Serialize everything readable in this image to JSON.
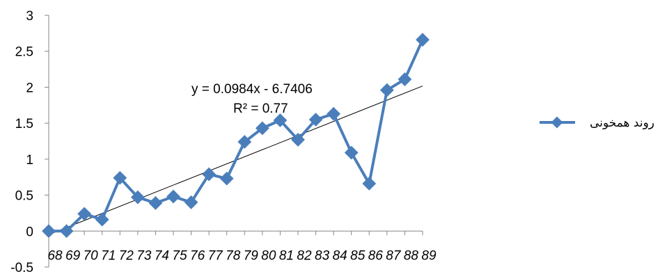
{
  "chart_data": {
    "type": "line",
    "x": [
      "68",
      "69",
      "70",
      "71",
      "72",
      "73",
      "74",
      "75",
      "76",
      "77",
      "78",
      "79",
      "80",
      "81",
      "82",
      "83",
      "84",
      "85",
      "86",
      "87",
      "88",
      "89"
    ],
    "series": [
      {
        "name": "روند همخونی",
        "values": [
          0,
          0,
          0.24,
          0.16,
          0.74,
          0.47,
          0.39,
          0.48,
          0.4,
          0.79,
          0.73,
          1.24,
          1.43,
          1.54,
          1.27,
          1.55,
          1.63,
          1.09,
          0.66,
          1.96,
          2.11,
          2.66
        ],
        "color": "#4a7ebb"
      }
    ],
    "trendline": {
      "type": "linear",
      "equation": "y = 0.0984x - 6.7406",
      "r_squared": "R² = 0.77",
      "slope": 0.0984,
      "intercept": -6.7406,
      "color": "#000000"
    },
    "y_ticks": [
      "3",
      "2.5",
      "2",
      "1.5",
      "1",
      "0.5",
      "0",
      "-0.5"
    ],
    "ylim": [
      -0.5,
      3
    ],
    "grid": false,
    "legend": "right",
    "title": "",
    "xlabel": "",
    "ylabel": ""
  }
}
